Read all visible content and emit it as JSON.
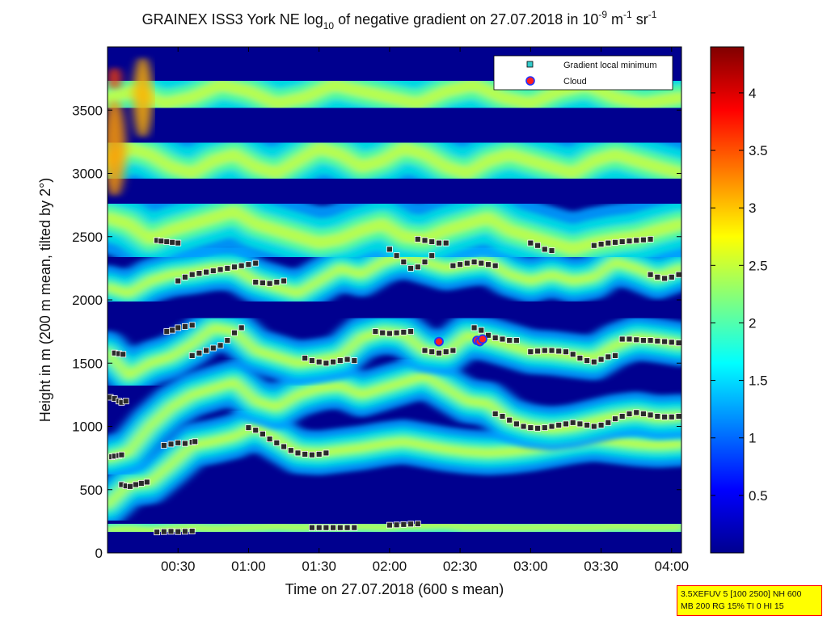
{
  "title": {
    "prefix": "GRAINEX ISS3 York NE log",
    "sub": "10",
    "mid": " of negative gradient on 27.07.2018 in 10",
    "sup1": "-9",
    "mid2": " m",
    "sup2": "-1",
    "mid3": " sr",
    "sup3": "-1"
  },
  "settings_box": {
    "line1": "3.5XEFUV 5 [100 2500] NH 600",
    "line2": "MB 200 RG 15% TI 0 HI 15"
  },
  "chart_data": {
    "type": "heatmap",
    "xlabel": "Time on 27.07.2018 (600 s mean)",
    "ylabel": "Height in m (200 m mean, tilted by 2°)",
    "x_range_hours": [
      0.0,
      4.07
    ],
    "ylim": [
      0,
      4000
    ],
    "x_ticks": [
      {
        "label": "00:30",
        "hours": 0.5
      },
      {
        "label": "01:00",
        "hours": 1.0
      },
      {
        "label": "01:30",
        "hours": 1.5
      },
      {
        "label": "02:00",
        "hours": 2.0
      },
      {
        "label": "02:30",
        "hours": 2.5
      },
      {
        "label": "03:00",
        "hours": 3.0
      },
      {
        "label": "03:30",
        "hours": 3.5
      },
      {
        "label": "04:00",
        "hours": 4.0
      }
    ],
    "y_ticks": [
      {
        "label": "0",
        "value": 0
      },
      {
        "label": "500",
        "value": 500
      },
      {
        "label": "1000",
        "value": 1000
      },
      {
        "label": "1500",
        "value": 1500
      },
      {
        "label": "2000",
        "value": 2000
      },
      {
        "label": "2500",
        "value": 2500
      },
      {
        "label": "3000",
        "value": 3000
      },
      {
        "label": "3500",
        "value": 3500
      }
    ],
    "colorbar": {
      "range": [
        0,
        4.4
      ],
      "colormap": "jet",
      "ticks": [
        {
          "label": "0.5",
          "value": 0.5
        },
        {
          "label": "1",
          "value": 1.0
        },
        {
          "label": "1.5",
          "value": 1.5
        },
        {
          "label": "2",
          "value": 2.0
        },
        {
          "label": "2.5",
          "value": 2.5
        },
        {
          "label": "3",
          "value": 3.0
        },
        {
          "label": "3.5",
          "value": 3.5
        },
        {
          "label": "4",
          "value": 4.0
        }
      ]
    },
    "legend": {
      "placement": "top-right",
      "entries": [
        {
          "label": "Gradient local minimum",
          "marker": "square",
          "color": "#33cccc"
        },
        {
          "label": "Cloud",
          "marker": "circle",
          "color": "#ff2020",
          "edge": "#2233ff"
        }
      ]
    },
    "layers": [
      {
        "hours": [
          0.0,
          0.15,
          0.3,
          0.45,
          0.6,
          0.75,
          0.9,
          1.05,
          1.2,
          1.35,
          1.5,
          1.65,
          1.8,
          1.95,
          2.1,
          2.25,
          2.4,
          2.55,
          2.7,
          2.85,
          3.0,
          3.15,
          3.3,
          3.45,
          3.6,
          3.75,
          3.9,
          4.07
        ],
        "height": [
          180,
          190,
          175,
          190,
          200,
          190,
          195,
          200,
          210,
          200,
          205,
          200,
          210,
          200,
          215,
          215,
          220,
          200,
          205,
          200,
          200,
          205,
          200,
          200,
          210,
          205,
          200,
          205
        ]
      },
      {
        "hours": [
          0.0,
          0.15,
          0.3,
          0.45,
          0.6,
          0.75,
          0.9,
          1.05,
          1.2,
          1.35,
          1.5,
          1.65,
          1.8,
          1.95,
          2.1,
          2.25,
          2.4,
          2.55,
          2.7,
          2.85,
          3.0,
          3.15,
          3.3,
          3.45,
          3.6,
          3.75,
          3.9,
          4.07
        ],
        "height": [
          380,
          540,
          560,
          700,
          850,
          880,
          920,
          1000,
          900,
          800,
          790,
          810,
          830,
          860,
          880,
          850,
          820,
          800,
          790,
          800,
          820,
          850,
          880,
          900,
          880,
          860,
          850,
          860
        ]
      },
      {
        "hours": [
          0.0,
          0.15,
          0.3,
          0.45,
          0.6,
          0.75,
          0.9,
          1.05,
          1.2,
          1.35,
          1.5,
          1.65,
          1.8,
          1.95,
          2.1,
          2.25,
          2.4,
          2.55,
          2.7,
          2.85,
          3.0,
          3.15,
          3.3,
          3.45,
          3.6,
          3.75,
          3.9,
          4.07
        ],
        "height": [
          750,
          800,
          1000,
          1150,
          1250,
          1300,
          1350,
          1200,
          1150,
          1250,
          1300,
          1320,
          1250,
          1300,
          1350,
          1400,
          1300,
          1200,
          1180,
          1050,
          1000,
          980,
          1000,
          1040,
          1080,
          1100,
          1070,
          1080
        ]
      },
      {
        "hours": [
          0.0,
          0.15,
          0.3,
          0.45,
          0.6,
          0.75,
          0.9,
          1.05,
          1.2,
          1.35,
          1.5,
          1.65,
          1.8,
          1.95,
          2.1,
          2.25,
          2.4,
          2.55,
          2.7,
          2.85,
          3.0,
          3.15,
          3.3,
          3.45,
          3.6,
          3.75,
          3.9,
          4.07
        ],
        "height": [
          1580,
          1400,
          1500,
          1550,
          1650,
          1780,
          1750,
          1600,
          1550,
          1500,
          1520,
          1550,
          1700,
          1750,
          1730,
          1600,
          1580,
          1720,
          1690,
          1640,
          1590,
          1580,
          1560,
          1540,
          1640,
          1700,
          1680,
          1650
        ]
      },
      {
        "hours": [
          0.0,
          0.15,
          0.3,
          0.45,
          0.6,
          0.75,
          0.9,
          1.05,
          1.2,
          1.35,
          1.5,
          1.65,
          1.8,
          1.95,
          2.1,
          2.25,
          2.4,
          2.55,
          2.7,
          2.85,
          3.0,
          3.15,
          3.3,
          3.45,
          3.6,
          3.75,
          3.9,
          4.07
        ],
        "height": [
          2100,
          2050,
          2150,
          2200,
          2220,
          2250,
          2250,
          2150,
          2100,
          2050,
          2150,
          2250,
          2200,
          2300,
          2350,
          2300,
          2250,
          2280,
          2300,
          2200,
          2150,
          2200,
          2150,
          2180,
          2300,
          2250,
          2180,
          2250
        ]
      },
      {
        "hours": [
          0.0,
          0.15,
          0.3,
          0.45,
          0.6,
          0.75,
          0.9,
          1.05,
          1.2,
          1.35,
          1.5,
          1.65,
          1.8,
          1.95,
          2.1,
          2.25,
          2.4,
          2.55,
          2.7,
          2.85,
          3.0,
          3.15,
          3.3,
          3.45,
          3.6,
          3.75,
          3.9,
          4.07
        ],
        "height": [
          2650,
          2600,
          2480,
          2550,
          2600,
          2650,
          2700,
          2600,
          2550,
          2500,
          2450,
          2480,
          2550,
          2600,
          2500,
          2480,
          2550,
          2600,
          2650,
          2550,
          2500,
          2450,
          2400,
          2450,
          2480,
          2500,
          2550,
          2600
        ]
      },
      {
        "hours": [
          0.0,
          0.15,
          0.3,
          0.45,
          0.6,
          0.75,
          0.9,
          1.05,
          1.2,
          1.35,
          1.5,
          1.65,
          1.8,
          1.95,
          2.1,
          2.25,
          2.4,
          2.55,
          2.7,
          2.85,
          3.0,
          3.15,
          3.3,
          3.45,
          3.6,
          3.75,
          3.9,
          4.07
        ],
        "height": [
          3100,
          3200,
          3150,
          3050,
          3000,
          3100,
          3150,
          3050,
          3000,
          3100,
          3200,
          3150,
          3050,
          3100,
          3200,
          3150,
          3050,
          3000,
          3100,
          3150,
          3100,
          3050,
          3000,
          3100,
          3150,
          3100,
          3050,
          3000
        ]
      },
      {
        "hours": [
          0.0,
          0.2,
          0.4,
          0.6,
          0.8,
          1.0,
          1.2,
          1.4,
          1.6,
          1.8,
          2.0,
          2.2,
          2.4,
          2.6,
          2.8,
          3.0,
          3.2,
          3.4,
          3.6,
          3.8,
          4.07
        ],
        "height": [
          3600,
          3650,
          3550,
          3600,
          3700,
          3650,
          3550,
          3600,
          3700,
          3650,
          3600,
          3550,
          3650,
          3700,
          3600,
          3550,
          3650,
          3700,
          3600,
          3550,
          3600
        ]
      }
    ],
    "gradient_minima_tracks": [
      {
        "hours": [
          0.03,
          0.05,
          0.08,
          0.1
        ],
        "height": [
          760,
          765,
          770,
          775
        ]
      },
      {
        "hours": [
          0.02,
          0.05,
          0.08,
          0.1,
          0.13
        ],
        "height": [
          1230,
          1220,
          1200,
          1190,
          1200
        ]
      },
      {
        "hours": [
          0.05,
          0.08,
          0.11
        ],
        "height": [
          1580,
          1575,
          1570
        ]
      },
      {
        "hours": [
          0.1,
          0.13,
          0.16,
          0.2,
          0.24,
          0.28
        ],
        "height": [
          540,
          530,
          525,
          540,
          550,
          560
        ]
      },
      {
        "hours": [
          0.35,
          0.4,
          0.45,
          0.5,
          0.55,
          0.6
        ],
        "height": [
          165,
          168,
          170,
          168,
          170,
          172
        ]
      },
      {
        "hours": [
          0.4,
          0.45,
          0.5,
          0.55,
          0.6,
          0.62
        ],
        "height": [
          850,
          860,
          870,
          865,
          875,
          880
        ]
      },
      {
        "hours": [
          0.42,
          0.46,
          0.5,
          0.55,
          0.6
        ],
        "height": [
          1750,
          1760,
          1780,
          1790,
          1800
        ]
      },
      {
        "hours": [
          0.5,
          0.55,
          0.6,
          0.65,
          0.7,
          0.75,
          0.8,
          0.85,
          0.9,
          0.95,
          1.0,
          1.05
        ],
        "height": [
          2150,
          2180,
          2200,
          2210,
          2220,
          2230,
          2240,
          2250,
          2260,
          2270,
          2280,
          2290
        ]
      },
      {
        "hours": [
          0.35,
          0.38,
          0.42,
          0.46,
          0.5
        ],
        "height": [
          2470,
          2465,
          2460,
          2455,
          2450
        ]
      },
      {
        "hours": [
          0.6,
          0.65,
          0.7,
          0.75,
          0.8,
          0.85,
          0.9,
          0.95
        ],
        "height": [
          1560,
          1580,
          1600,
          1620,
          1640,
          1680,
          1740,
          1780
        ]
      },
      {
        "hours": [
          1.0,
          1.05,
          1.1,
          1.15,
          1.2,
          1.25,
          1.3,
          1.35,
          1.4,
          1.45,
          1.5,
          1.55
        ],
        "height": [
          990,
          970,
          940,
          900,
          870,
          840,
          810,
          790,
          780,
          775,
          780,
          790
        ]
      },
      {
        "hours": [
          1.05,
          1.1,
          1.15,
          1.2,
          1.25
        ],
        "height": [
          2140,
          2135,
          2130,
          2140,
          2150
        ]
      },
      {
        "hours": [
          1.4,
          1.45,
          1.5,
          1.55,
          1.6,
          1.65,
          1.7,
          1.75
        ],
        "height": [
          1540,
          1520,
          1510,
          1500,
          1510,
          1520,
          1530,
          1520
        ]
      },
      {
        "hours": [
          1.45,
          1.5,
          1.55,
          1.6,
          1.65,
          1.7,
          1.75
        ],
        "height": [
          200,
          200,
          200,
          200,
          200,
          200,
          200
        ]
      },
      {
        "hours": [
          1.9,
          1.95,
          2.0,
          2.05,
          2.1,
          2.15
        ],
        "height": [
          1750,
          1740,
          1735,
          1740,
          1745,
          1750
        ]
      },
      {
        "hours": [
          2.0,
          2.05,
          2.1,
          2.15,
          2.2
        ],
        "height": [
          220,
          222,
          225,
          228,
          230
        ]
      },
      {
        "hours": [
          2.0,
          2.05,
          2.1,
          2.15,
          2.2,
          2.25,
          2.3
        ],
        "height": [
          2400,
          2350,
          2300,
          2250,
          2260,
          2300,
          2350
        ]
      },
      {
        "hours": [
          2.2,
          2.25,
          2.3,
          2.35,
          2.4
        ],
        "height": [
          2480,
          2470,
          2460,
          2450,
          2450
        ]
      },
      {
        "hours": [
          2.25,
          2.3,
          2.35,
          2.4,
          2.45
        ],
        "height": [
          1600,
          1590,
          1580,
          1590,
          1600
        ]
      },
      {
        "hours": [
          2.45,
          2.5,
          2.55,
          2.6,
          2.65,
          2.7,
          2.75
        ],
        "height": [
          2270,
          2280,
          2290,
          2300,
          2290,
          2280,
          2270
        ]
      },
      {
        "hours": [
          2.6,
          2.65,
          2.7,
          2.75,
          2.8,
          2.85,
          2.9
        ],
        "height": [
          1780,
          1760,
          1720,
          1700,
          1690,
          1680,
          1680
        ]
      },
      {
        "hours": [
          2.75,
          2.8,
          2.85,
          2.9,
          2.95,
          3.0,
          3.05,
          3.1,
          3.15,
          3.2,
          3.25,
          3.3,
          3.35,
          3.4,
          3.45,
          3.5,
          3.55,
          3.6,
          3.65,
          3.7,
          3.75,
          3.8,
          3.85,
          3.9,
          3.95,
          4.0,
          4.05
        ],
        "height": [
          1100,
          1080,
          1050,
          1020,
          1000,
          990,
          985,
          990,
          1000,
          1010,
          1020,
          1030,
          1020,
          1010,
          1000,
          1010,
          1030,
          1060,
          1080,
          1100,
          1110,
          1100,
          1090,
          1080,
          1075,
          1075,
          1080
        ]
      },
      {
        "hours": [
          3.0,
          3.05,
          3.1,
          3.15,
          3.2,
          3.25,
          3.3,
          3.35,
          3.4,
          3.45,
          3.5,
          3.55,
          3.6
        ],
        "height": [
          1590,
          1595,
          1600,
          1600,
          1595,
          1590,
          1570,
          1540,
          1520,
          1510,
          1530,
          1550,
          1560
        ]
      },
      {
        "hours": [
          3.65,
          3.7,
          3.75,
          3.8,
          3.85,
          3.9,
          3.95,
          4.0,
          4.05
        ],
        "height": [
          1690,
          1690,
          1685,
          1680,
          1680,
          1675,
          1670,
          1665,
          1660
        ]
      },
      {
        "hours": [
          3.45,
          3.5,
          3.55,
          3.6,
          3.65,
          3.7,
          3.75,
          3.8,
          3.85
        ],
        "height": [
          2430,
          2440,
          2450,
          2455,
          2460,
          2465,
          2470,
          2475,
          2480
        ]
      },
      {
        "hours": [
          3.0,
          3.05,
          3.1,
          3.15
        ],
        "height": [
          2450,
          2430,
          2400,
          2390
        ]
      },
      {
        "hours": [
          3.85,
          3.9,
          3.95,
          4.0,
          4.05
        ],
        "height": [
          2200,
          2180,
          2170,
          2180,
          2200
        ]
      }
    ],
    "clouds": [
      {
        "hours": 2.35,
        "height": 1670
      },
      {
        "hours": 2.62,
        "height": 1680
      },
      {
        "hours": 2.64,
        "height": 1670
      },
      {
        "hours": 2.66,
        "height": 1690
      }
    ]
  }
}
